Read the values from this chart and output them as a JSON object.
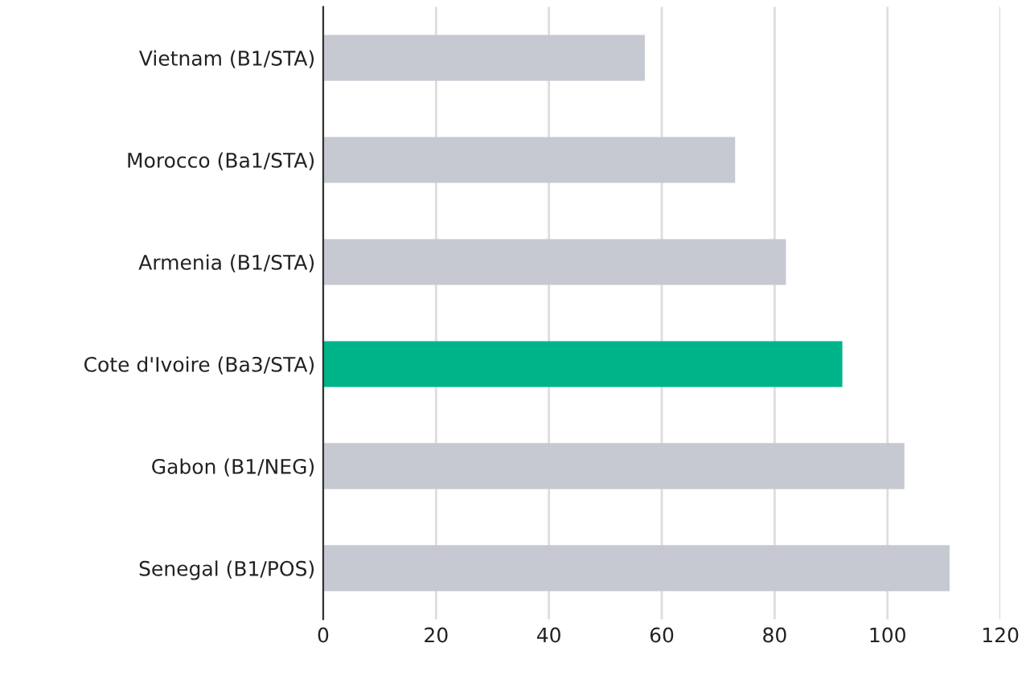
{
  "chart_data": {
    "type": "bar",
    "orientation": "horizontal",
    "categories": [
      "Vietnam (B1/STA)",
      "Morocco (Ba1/STA)",
      "Armenia (B1/STA)",
      "Cote d'Ivoire (Ba3/STA)",
      "Gabon (B1/NEG)",
      "Senegal (B1/POS)"
    ],
    "values": [
      57,
      73,
      82,
      92,
      103,
      111
    ],
    "colors": [
      "#c6c8d2",
      "#c6c8d2",
      "#c6c8d2",
      "#00b48a",
      "#c6c8d2",
      "#c6c8d2"
    ],
    "xlim": [
      0,
      120
    ],
    "xticks": [
      0,
      20,
      40,
      60,
      80,
      100,
      120
    ],
    "grid": "x"
  }
}
